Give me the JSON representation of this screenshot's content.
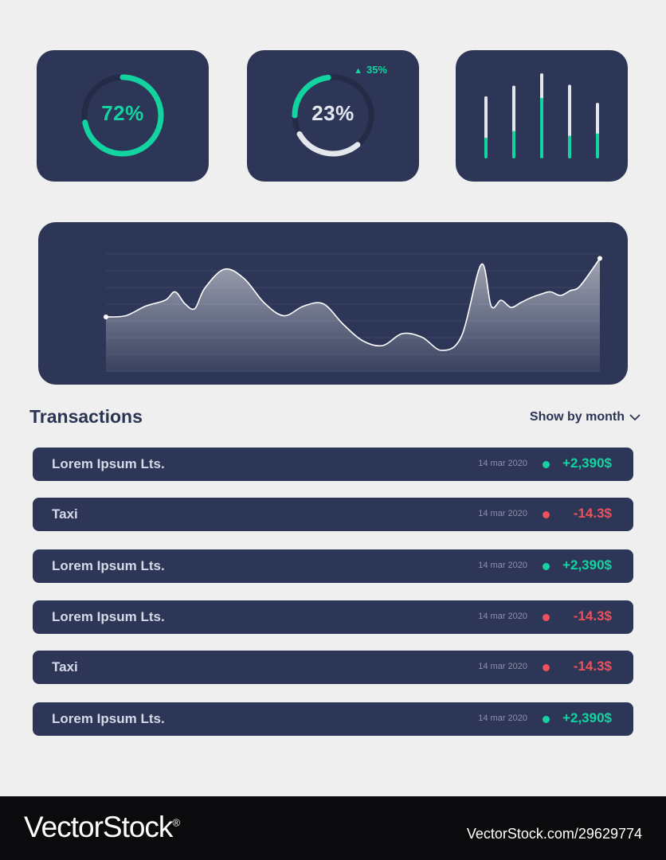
{
  "colors": {
    "accent": "#13d4a0",
    "negative": "#f0505a",
    "card": "#2d3656",
    "text_dark": "#2b3454",
    "track": "#242b46",
    "light": "#e4e6ee"
  },
  "widgets": {
    "donut1": {
      "label": "72%",
      "value": 0.72
    },
    "donut2": {
      "label": "23%",
      "value": 0.23,
      "secondary_value": 0.28,
      "delta": "35%",
      "delta_icon": "triangle-up-icon"
    },
    "bars": {
      "values": [
        {
          "total": 0.72,
          "accent": 0.3
        },
        {
          "total": 0.85,
          "accent": 0.35
        },
        {
          "total": 1.0,
          "accent": 0.7
        },
        {
          "total": 0.86,
          "accent": 0.28
        },
        {
          "total": 0.64,
          "accent": 0.42
        }
      ]
    }
  },
  "chart_data": {
    "type": "area",
    "title": "",
    "xlabel": "",
    "ylabel": "",
    "ylim": [
      0,
      100
    ],
    "grid": true,
    "x": [
      0,
      4,
      8,
      12,
      14,
      16,
      18,
      20,
      24,
      28,
      32,
      36,
      40,
      44,
      48,
      52,
      56,
      60,
      64,
      68,
      72,
      76,
      78,
      80,
      82,
      84,
      86,
      88,
      90,
      92,
      94,
      96,
      100
    ],
    "values": [
      46,
      47,
      55,
      60,
      67,
      57,
      53,
      70,
      86,
      78,
      58,
      47,
      55,
      57,
      40,
      26,
      22,
      32,
      29,
      18,
      30,
      90,
      55,
      60,
      54,
      58,
      62,
      65,
      67,
      64,
      68,
      72,
      95
    ]
  },
  "transactions": {
    "title": "Transactions",
    "filter_label": "Show by month",
    "filter_icon": "chevron-down-icon",
    "rows": [
      {
        "name": "Lorem Ipsum Lts.",
        "date": "14 mar 2020",
        "amount": "+2,390$",
        "status": "positive"
      },
      {
        "name": "Taxi",
        "date": "14 mar 2020",
        "amount": "-14.3$",
        "status": "negative"
      },
      {
        "name": "Lorem Ipsum Lts.",
        "date": "14 mar 2020",
        "amount": "+2,390$",
        "status": "positive"
      },
      {
        "name": "Lorem Ipsum Lts.",
        "date": "14 mar 2020",
        "amount": "-14.3$",
        "status": "negative"
      },
      {
        "name": "Taxi",
        "date": "14 mar 2020",
        "amount": "-14.3$",
        "status": "negative"
      },
      {
        "name": "Lorem Ipsum Lts.",
        "date": "14 mar 2020",
        "amount": "+2,390$",
        "status": "positive"
      }
    ]
  },
  "footer": {
    "brand": "VectorStock",
    "registered": "®",
    "image_id": "VectorStock.com/29629774"
  }
}
